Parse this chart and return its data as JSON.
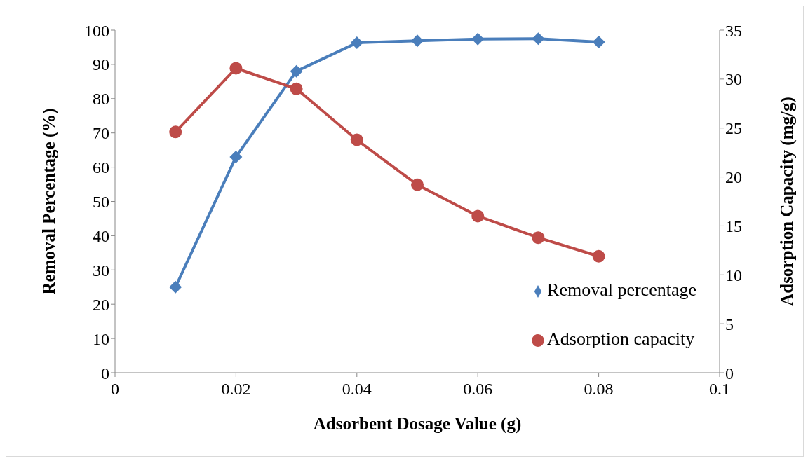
{
  "chart_data": {
    "type": "line",
    "xlabel": "Adsorbent Dosage Value (g)",
    "ylabel": "Removal Percentage (%)",
    "y2label": "Adsorption Capacity (mg/g)",
    "x": [
      0.01,
      0.02,
      0.03,
      0.04,
      0.05,
      0.06,
      0.07,
      0.08
    ],
    "series": [
      {
        "name": "Removal percentage",
        "color": "#4a7ebb",
        "marker": "diamond",
        "values": [
          25,
          63,
          88,
          96.3,
          96.9,
          97.4,
          97.5,
          96.5
        ]
      },
      {
        "name": "Adsorption capacity",
        "color": "#be4b48",
        "marker": "circle",
        "axis": "y2",
        "values": [
          24.6,
          31.1,
          29.0,
          23.8,
          19.2,
          16.0,
          13.8,
          11.9
        ]
      }
    ],
    "xlim": [
      0,
      0.1
    ],
    "xticks": [
      0,
      0.02,
      0.04,
      0.06,
      0.08,
      0.1
    ],
    "ylim": [
      0,
      100
    ],
    "yticks": [
      0,
      10,
      20,
      30,
      40,
      50,
      60,
      70,
      80,
      90,
      100
    ],
    "y2lim": [
      0,
      35
    ],
    "y2ticks": [
      0,
      5,
      10,
      15,
      20,
      25,
      30,
      35
    ],
    "grid": false,
    "legend": "bottom right",
    "line_style": "solid"
  }
}
